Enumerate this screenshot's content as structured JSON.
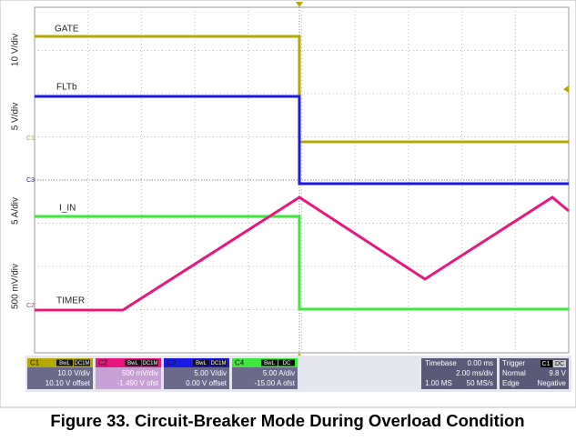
{
  "trace_labels": [
    "GATE",
    "FLTb",
    "I_IN",
    "TIMER"
  ],
  "scale_labels": [
    "10 V/div",
    "5 V/div",
    "5 A/div",
    "500 mV/div"
  ],
  "markers": [
    "C1",
    "C3",
    "C2"
  ],
  "channels": [
    {
      "name": "C1",
      "tags": [
        "BwL",
        "DC1M"
      ],
      "scale": "10.0 V/div",
      "offset": "10.10 V offset"
    },
    {
      "name": "C2",
      "tags": [
        "BwL",
        "DC1M"
      ],
      "scale": "500 mV/div",
      "offset": "-1.490 V ofst"
    },
    {
      "name": "C3",
      "tags": [
        "BwL",
        "DC1M"
      ],
      "scale": "5.00 V/div",
      "offset": "0.00 V offset"
    },
    {
      "name": "C4",
      "tags": [
        "BwL",
        "DC"
      ],
      "scale": "5.00 A/div",
      "offset": "-15.00 A ofst"
    }
  ],
  "timebase": {
    "title": "Timebase",
    "delay": "0.00 ms",
    "scale": "2.00 ms/div",
    "samples": "1.00 MS",
    "rate": "50 MS/s"
  },
  "trigger": {
    "title": "Trigger",
    "source": "C1",
    "coupling": "DC",
    "mode": "Normal",
    "level": "9.8 V",
    "type": "Edge",
    "slope": "Negative"
  },
  "caption": "Figure 33.  Circuit-Breaker Mode During Overload Condition"
}
